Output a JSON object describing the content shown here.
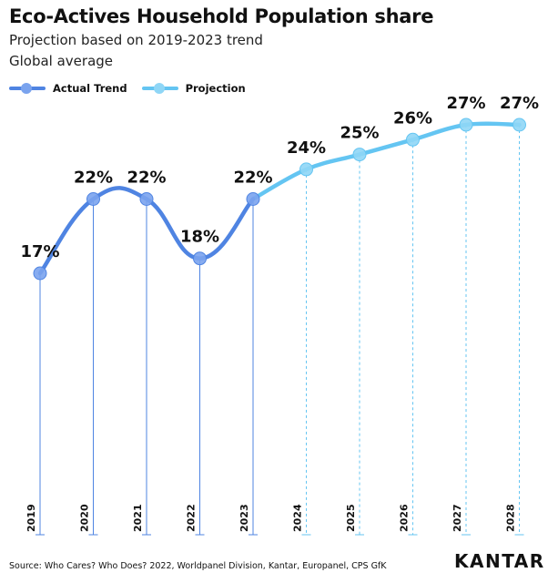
{
  "header": {
    "title": "Eco-Actives Household Population share",
    "subtitle1": "Projection based on 2019-2023 trend",
    "subtitle2": "Global average"
  },
  "legend": {
    "actual_label": "Actual Trend",
    "projection_label": "Projection"
  },
  "colors": {
    "actual": "#4f84e2",
    "actual_dot": "#7aa3ee",
    "projection": "#64c5f2",
    "projection_dot": "#8fd6f6"
  },
  "chart_data": {
    "type": "line",
    "x": [
      "2019",
      "2020",
      "2021",
      "2022",
      "2023",
      "2024",
      "2025",
      "2026",
      "2027",
      "2028"
    ],
    "series": [
      {
        "name": "Actual Trend",
        "x": [
          "2019",
          "2020",
          "2021",
          "2022",
          "2023"
        ],
        "values": [
          17,
          22,
          22,
          18,
          22
        ]
      },
      {
        "name": "Projection",
        "x": [
          "2023",
          "2024",
          "2025",
          "2026",
          "2027",
          "2028"
        ],
        "values": [
          22,
          24,
          25,
          26,
          27,
          27
        ]
      }
    ],
    "data_labels": [
      "17%",
      "22%",
      "22%",
      "18%",
      "22%",
      "24%",
      "25%",
      "26%",
      "27%",
      "27%"
    ],
    "legend_position": "top-left",
    "grid": false
  },
  "footer": {
    "source": "Source: Who Cares? Who Does? 2022, Worldpanel Division, Kantar, Europanel, CPS GfK",
    "logo_text": "KANTAR"
  }
}
